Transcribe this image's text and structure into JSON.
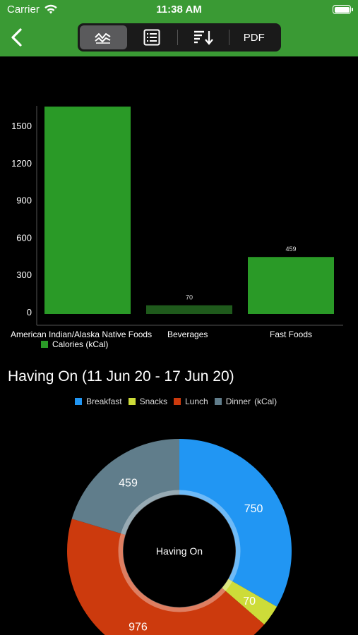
{
  "status_bar": {
    "carrier": "Carrier",
    "time": "11:38 AM"
  },
  "toolbar": {
    "pdf_label": "PDF"
  },
  "colors": {
    "header_green": "#3a9a34",
    "bar_green": "#2a9a27",
    "beverages_bar": "#1f5a1c"
  },
  "bar_chart": {
    "legend_label": "Calories  (kCal)",
    "legend_color": "#2a9a27"
  },
  "pie_section": {
    "title": "Having On (11 Jun 20 - 17 Jun 20)",
    "center_label": "Having On",
    "legend": [
      {
        "label": "Breakfast",
        "color": "#2196f3"
      },
      {
        "label": "Snacks",
        "color": "#cddc39"
      },
      {
        "label": "Lunch",
        "color": "#cc3a0d"
      },
      {
        "label": "Dinner",
        "color": "#607d8b"
      }
    ],
    "legend_unit": "(kCal)"
  },
  "chart_data": [
    {
      "type": "bar",
      "categories": [
        "American Indian/Alaska Native Foods",
        "Beverages",
        "Fast Foods"
      ],
      "series": [
        {
          "name": "Calories  (kCal)",
          "values": [
            1670,
            70,
            459
          ]
        }
      ],
      "data_labels": [
        "",
        "70",
        "459"
      ],
      "yticks": [
        0,
        300,
        600,
        900,
        1200,
        1500
      ],
      "ylim": [
        0,
        1700
      ],
      "legend_position": "bottom-left",
      "grid": false
    },
    {
      "type": "pie",
      "title": "Having On (11 Jun 20 - 17 Jun 20)",
      "slices": [
        {
          "name": "Breakfast",
          "value": 750
        },
        {
          "name": "Snacks",
          "value": 70
        },
        {
          "name": "Lunch",
          "value": 976
        },
        {
          "name": "Dinner",
          "value": 459
        }
      ],
      "hole": true,
      "legend_position": "top"
    }
  ]
}
